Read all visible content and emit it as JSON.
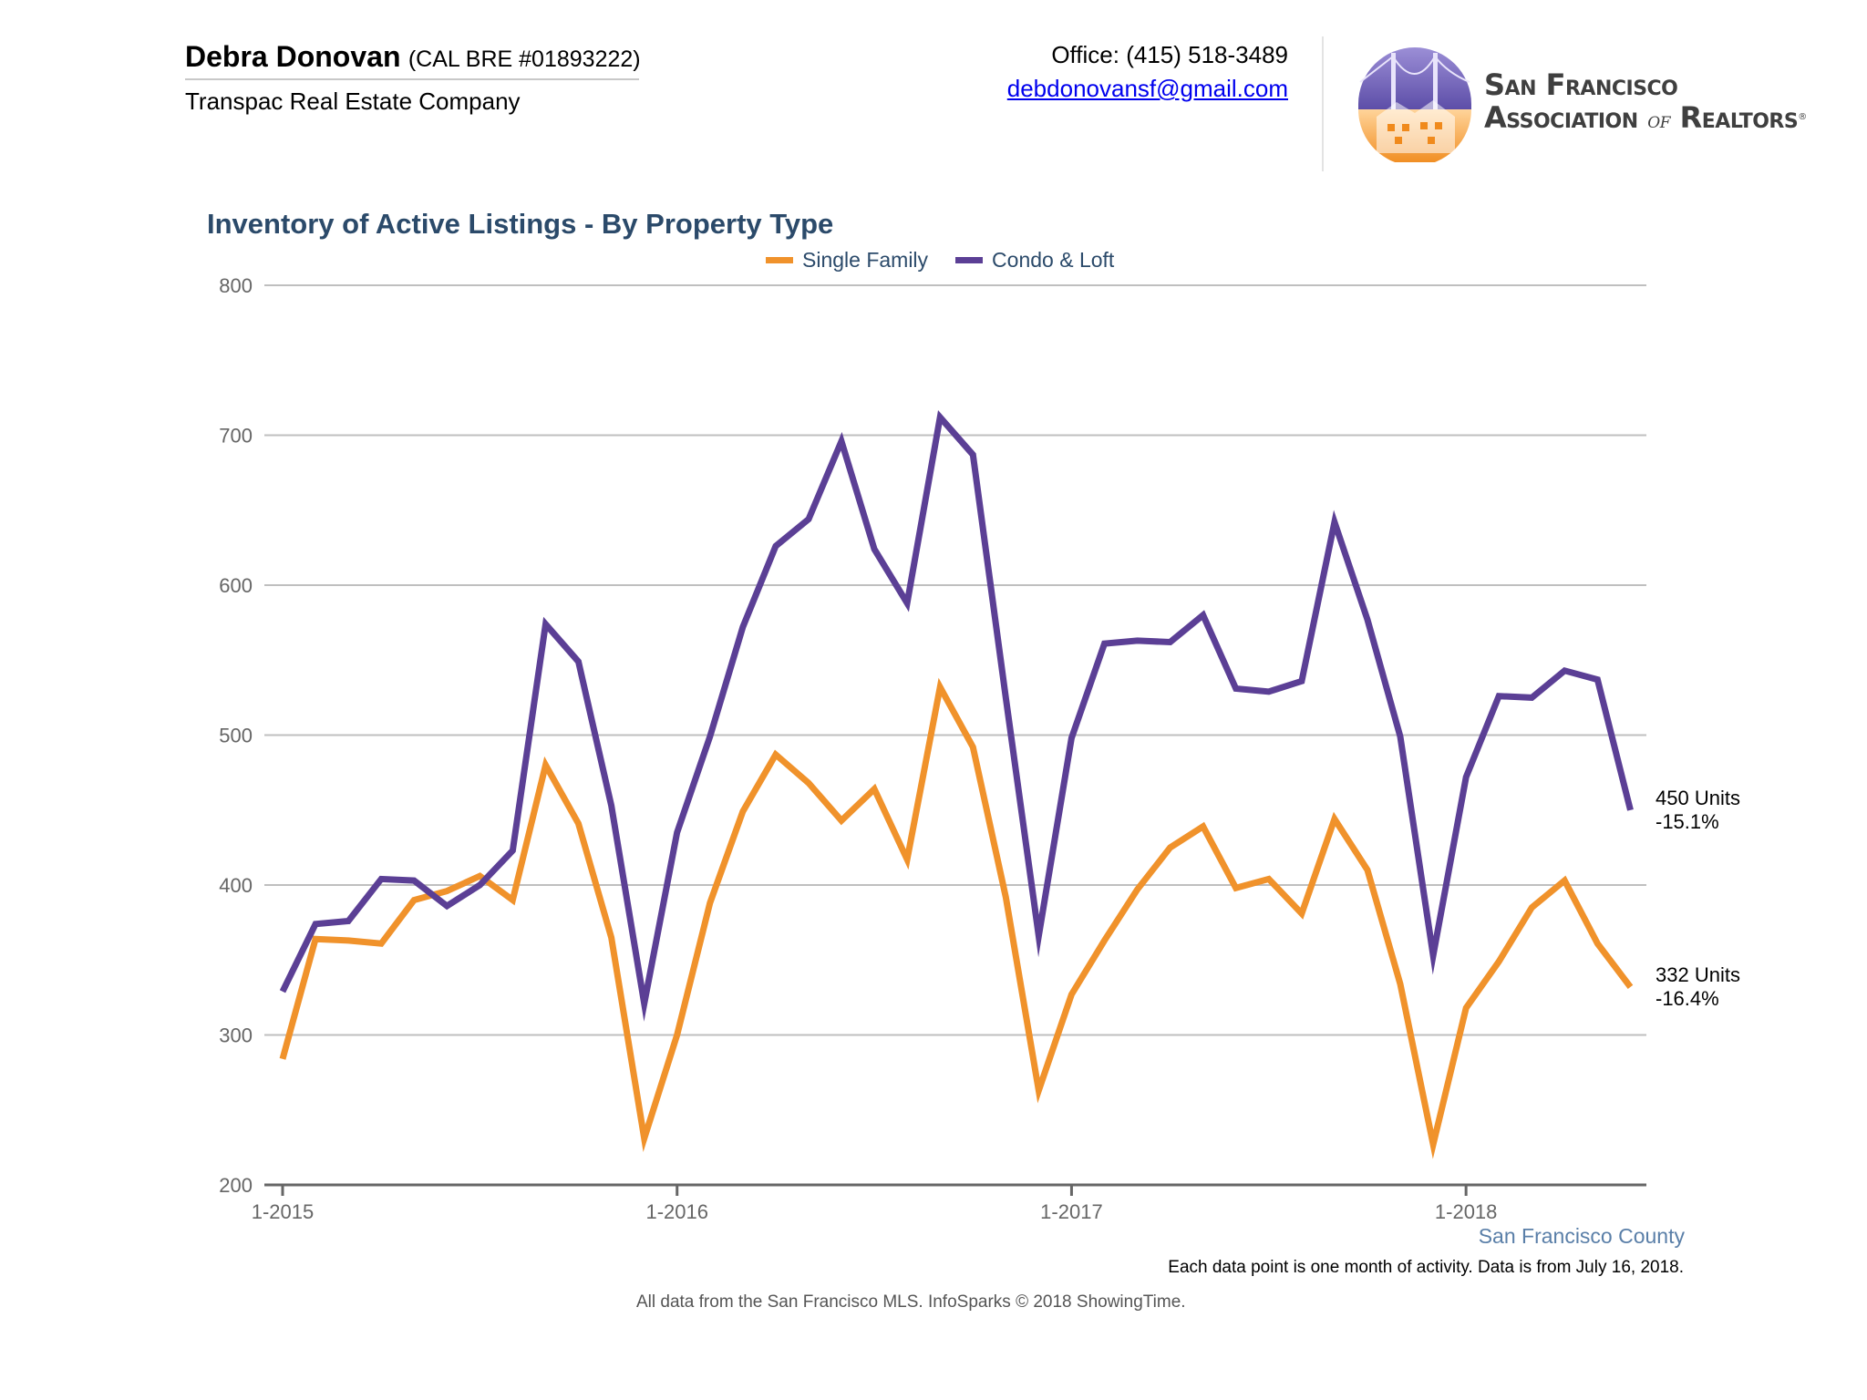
{
  "agent": {
    "name": "Debra Donovan",
    "license": "(CAL BRE #01893222)",
    "company": "Transpac Real Estate Company"
  },
  "contact": {
    "office": "Office: (415) 518-3489",
    "email": "debdonovansf@gmail.com"
  },
  "logo": {
    "line1": "San Francisco",
    "line2_pre": "Association",
    "line2_of": "of",
    "line2_post": "Realtors",
    "reg": "®",
    "colors": {
      "purple": "#7b6bbd",
      "orange": "#f39a2b"
    }
  },
  "chart_data": {
    "type": "line",
    "title": "Inventory of Active Listings - By Property Type",
    "ylim": [
      200,
      800
    ],
    "yticks": [
      200,
      300,
      400,
      500,
      600,
      700,
      800
    ],
    "xticks": [
      {
        "index": 0,
        "label": "1-2015"
      },
      {
        "index": 12,
        "label": "1-2016"
      },
      {
        "index": 24,
        "label": "1-2017"
      },
      {
        "index": 36,
        "label": "1-2018"
      }
    ],
    "grid": true,
    "legend_position": "top-center",
    "x": [
      "1-2015",
      "2-2015",
      "3-2015",
      "4-2015",
      "5-2015",
      "6-2015",
      "7-2015",
      "8-2015",
      "9-2015",
      "10-2015",
      "11-2015",
      "12-2015",
      "1-2016",
      "2-2016",
      "3-2016",
      "4-2016",
      "5-2016",
      "6-2016",
      "7-2016",
      "8-2016",
      "9-2016",
      "10-2016",
      "11-2016",
      "12-2016",
      "1-2017",
      "2-2017",
      "3-2017",
      "4-2017",
      "5-2017",
      "6-2017",
      "7-2017",
      "8-2017",
      "9-2017",
      "10-2017",
      "11-2017",
      "12-2017",
      "1-2018",
      "2-2018",
      "3-2018",
      "4-2018",
      "5-2018",
      "6-2018"
    ],
    "series": [
      {
        "name": "Single Family",
        "color": "#f0922b",
        "values": [
          284,
          364,
          363,
          361,
          390,
          396,
          406,
          390,
          480,
          441,
          365,
          231,
          300,
          388,
          449,
          487,
          468,
          443,
          464,
          417,
          532,
          492,
          392,
          263,
          327,
          363,
          397,
          425,
          439,
          398,
          404,
          381,
          444,
          410,
          334,
          227,
          318,
          349,
          385,
          403,
          361,
          332
        ],
        "end_label": "332 Units",
        "end_change": "-16.4%"
      },
      {
        "name": "Condo & Loft",
        "color": "#5b3f95",
        "values": [
          329,
          374,
          376,
          404,
          403,
          386,
          400,
          423,
          574,
          549,
          453,
          321,
          435,
          499,
          572,
          626,
          644,
          696,
          624,
          588,
          712,
          687,
          525,
          366,
          498,
          561,
          563,
          562,
          580,
          531,
          529,
          536,
          642,
          577,
          499,
          353,
          472,
          526,
          525,
          543,
          537,
          450
        ],
        "end_label": "450 Units",
        "end_change": "-15.1%"
      }
    ]
  },
  "footer": {
    "region": "San Francisco County",
    "note": "Each data point is one month of activity. Data is from July 16, 2018.",
    "source": "All data from the San Francisco MLS. InfoSparks © 2018 ShowingTime."
  },
  "colors": {
    "title": "#2b4a6a",
    "grid": "#bfbfbf",
    "axis": "#666666",
    "region": "#5a7fa8"
  }
}
